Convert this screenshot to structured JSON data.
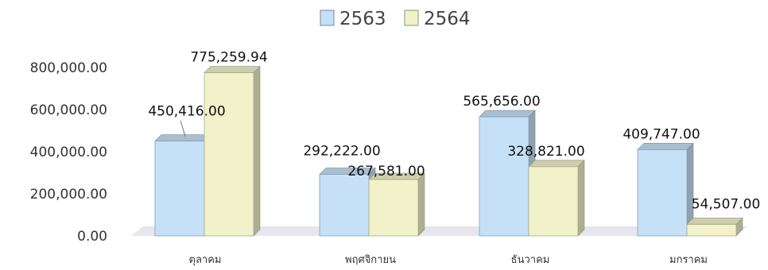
{
  "chart_data": {
    "type": "bar",
    "style": "3d-clustered-column",
    "categories": [
      "ตุลาคม",
      "พฤศจิกายน",
      "ธันวาคม",
      "มกราคม"
    ],
    "series": [
      {
        "name": "2563",
        "values": [
          450416.0,
          292222.0,
          565656.0,
          409747.0
        ],
        "labels": [
          "450,416.00",
          "292,222.00",
          "565,656.00",
          "409,747.00"
        ],
        "color": "#c6e1f7"
      },
      {
        "name": "2564",
        "values": [
          775259.94,
          267581.0,
          328821.0,
          54507.0
        ],
        "labels": [
          "775,259.94",
          "267,581.00",
          "328,821.00",
          "54,507.00"
        ],
        "color": "#f1f2c9"
      }
    ],
    "ylim": [
      0,
      800000
    ],
    "yticks": [
      0,
      200000,
      400000,
      600000,
      800000
    ],
    "ytick_labels": [
      "0.00",
      "200,000.00",
      "400,000.00",
      "600,000.00",
      "800,000.00"
    ],
    "grid": false,
    "legend_position": "top-center",
    "title": "",
    "xlabel": "",
    "ylabel": ""
  }
}
